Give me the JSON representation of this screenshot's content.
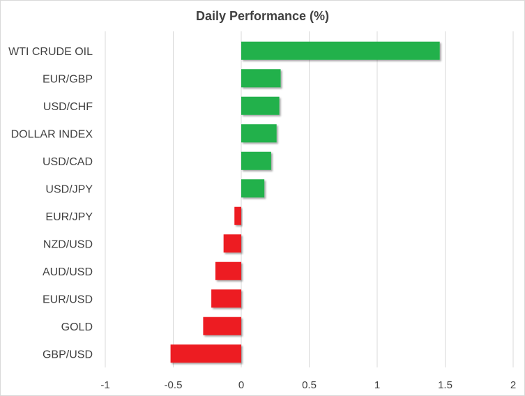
{
  "chart_data": {
    "type": "bar",
    "orientation": "horizontal",
    "title": "Daily Performance (%)",
    "xlabel": "",
    "ylabel": "",
    "categories": [
      "WTI CRUDE OIL",
      "EUR/GBP",
      "USD/CHF",
      "DOLLAR INDEX",
      "USD/CAD",
      "USD/JPY",
      "EUR/JPY",
      "NZD/USD",
      "AUD/USD",
      "EUR/USD",
      "GOLD",
      "GBP/USD"
    ],
    "values": [
      1.46,
      0.29,
      0.28,
      0.26,
      0.22,
      0.17,
      -0.05,
      -0.13,
      -0.19,
      -0.22,
      -0.28,
      -0.52
    ],
    "xlim": [
      -1,
      2
    ],
    "xticks": [
      -1,
      -0.5,
      0,
      0.5,
      1,
      1.5,
      2
    ],
    "xtick_labels": [
      "-1",
      "-0.5",
      "0",
      "0.5",
      "1",
      "1.5",
      "2"
    ],
    "grid": "vertical",
    "legend": "none",
    "colors": {
      "positive": "#22b14c",
      "negative": "#ed1c24",
      "grid": "#d9d9d9",
      "text": "#404040"
    }
  }
}
